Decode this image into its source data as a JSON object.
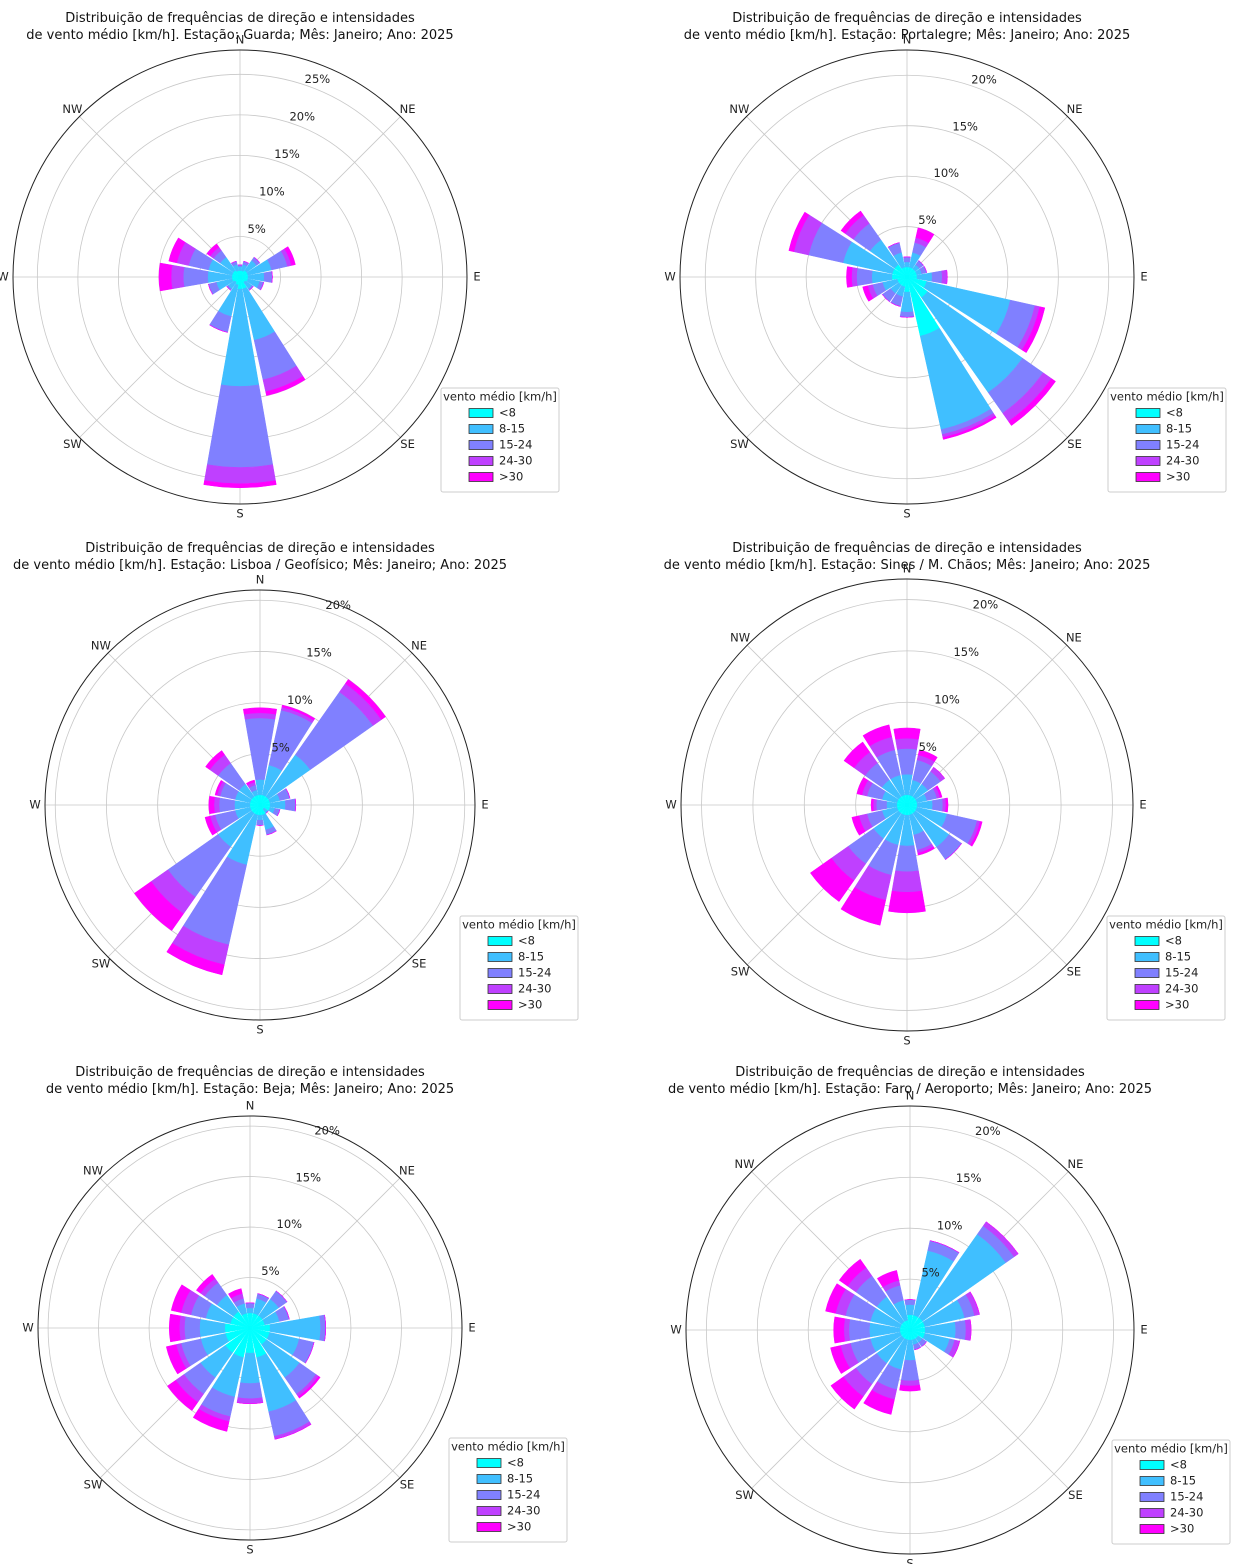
{
  "chart_data": [
    {
      "type": "windrose",
      "title": "Distribuição de frequências de direção e intensidades\nde vento médio [km/h]. Estação: Guarda; Mês: Janeiro; Ano: 2025",
      "categories": [
        "N",
        null,
        "NE",
        null,
        "E",
        null,
        "SE",
        null,
        "S",
        null,
        "SW",
        null,
        "W",
        null,
        "NW",
        null
      ],
      "ylim": [
        0,
        28
      ],
      "yticks": [
        {
          "value": 5,
          "label": "5%"
        },
        {
          "value": 10,
          "label": "10%"
        },
        {
          "value": 15,
          "label": "15%"
        },
        {
          "value": 20,
          "label": "20%"
        },
        {
          "value": 25,
          "label": "25%"
        }
      ],
      "legend_title": "vento médio [km/h]",
      "series": [
        {
          "name": "<8",
          "color": "#00ffff",
          "values": [
            0.8,
            0.8,
            1,
            1,
            1,
            1,
            0.8,
            1.5,
            1.5,
            1,
            0.8,
            1,
            1,
            1,
            1,
            0.8
          ]
        },
        {
          "name": "8-15",
          "color": "#40bfff",
          "values": [
            0.5,
            0.8,
            1.5,
            3,
            2,
            1.5,
            1,
            6.5,
            12,
            4,
            1,
            2,
            3,
            3,
            2,
            0.8
          ]
        },
        {
          "name": "15-24",
          "color": "#8080ff",
          "values": [
            0.2,
            0.4,
            0.5,
            2,
            1,
            0.5,
            0.2,
            5,
            10,
            2,
            0.2,
            1,
            3,
            2.5,
            1,
            0.4
          ]
        },
        {
          "name": "24-30",
          "color": "#bf40ff",
          "values": [
            0,
            0,
            0,
            0.5,
            0,
            0,
            0,
            1.5,
            2,
            0,
            0,
            0,
            1.5,
            1.5,
            0.5,
            0
          ]
        },
        {
          "name": ">30",
          "color": "#ff00ff",
          "values": [
            0,
            0,
            0,
            0.5,
            0,
            0,
            0,
            0.5,
            0.5,
            0,
            0,
            0,
            1.5,
            1,
            0.5,
            0
          ]
        }
      ]
    },
    {
      "type": "windrose",
      "title": "Distribuição de frequências de direção e intensidades\nde vento médio [km/h]. Estação: Portalegre; Mês: Janeiro; Ano: 2025",
      "categories": [
        "N",
        null,
        "NE",
        null,
        "E",
        null,
        "SE",
        null,
        "S",
        null,
        "SW",
        null,
        "W",
        null,
        "NW",
        null
      ],
      "ylim": [
        0,
        22.5
      ],
      "yticks": [
        {
          "value": 5,
          "label": "5%"
        },
        {
          "value": 10,
          "label": "10%"
        },
        {
          "value": 15,
          "label": "15%"
        },
        {
          "value": 20,
          "label": "20%"
        }
      ],
      "legend_title": "vento médio [km/h]",
      "series": [
        {
          "name": "<8",
          "color": "#00ffff",
          "values": [
            1,
            1,
            1,
            1,
            1,
            2,
            2.5,
            6,
            1.5,
            1,
            1,
            1,
            1.5,
            1.5,
            1.5,
            1
          ]
        },
        {
          "name": "8-15",
          "color": "#40bfff",
          "values": [
            0.5,
            1.5,
            0.5,
            0.5,
            1.5,
            8.5,
            11.5,
            9.5,
            2,
            1,
            1,
            1.5,
            2,
            5,
            3,
            1.5
          ]
        },
        {
          "name": "15-24",
          "color": "#8080ff",
          "values": [
            0.5,
            1,
            0.5,
            0.5,
            1,
            2.5,
            2.5,
            0.5,
            0.5,
            1,
            1,
            1,
            1.5,
            3.5,
            2,
            1
          ]
        },
        {
          "name": "24-30",
          "color": "#bf40ff",
          "values": [
            0,
            0.5,
            0,
            0,
            0.5,
            0.5,
            1,
            0.3,
            0,
            0,
            0,
            0.5,
            0.5,
            1.5,
            1,
            0
          ]
        },
        {
          "name": ">30",
          "color": "#ff00ff",
          "values": [
            0,
            1,
            0,
            0,
            0,
            0.5,
            0.5,
            0.2,
            0,
            0,
            0,
            0.5,
            0.5,
            0.5,
            0.5,
            0
          ]
        }
      ]
    },
    {
      "type": "windrose",
      "title": "Distribuição de frequências de direção e intensidades\nde vento médio [km/h]. Estação: Lisboa / Geofísico; Mês: Janeiro; Ano: 2025",
      "categories": [
        "N",
        null,
        "NE",
        null,
        "E",
        null,
        "SE",
        null,
        "S",
        null,
        "SW",
        null,
        "W",
        null,
        "NW",
        null
      ],
      "ylim": [
        0,
        21
      ],
      "yticks": [
        {
          "value": 5,
          "label": "5%"
        },
        {
          "value": 10,
          "label": "10%"
        },
        {
          "value": 15,
          "label": "15%"
        },
        {
          "value": 20,
          "label": "20%"
        }
      ],
      "legend_title": "vento médio [km/h]",
      "series": [
        {
          "name": "<8",
          "color": "#00ffff",
          "values": [
            1,
            1,
            1,
            1,
            1,
            1,
            0.5,
            1,
            1,
            1,
            1,
            1,
            1,
            1,
            1,
            1
          ]
        },
        {
          "name": "8-15",
          "color": "#40bfff",
          "values": [
            1.5,
            3,
            5,
            1,
            1.5,
            0.5,
            0.5,
            1.5,
            0.5,
            5,
            4,
            1.5,
            1.5,
            1.5,
            1.5,
            0.5
          ]
        },
        {
          "name": "15-24",
          "color": "#8080ff",
          "values": [
            6,
            5.5,
            7.5,
            1,
            1,
            0.5,
            0,
            0.5,
            0.5,
            8,
            6,
            2,
            1.5,
            1.5,
            2.5,
            0.5
          ]
        },
        {
          "name": "24-30",
          "color": "#bf40ff",
          "values": [
            0.5,
            0.3,
            1,
            0,
            0,
            0,
            0,
            0,
            0,
            2,
            2,
            0.5,
            0.5,
            0.3,
            1,
            0.3
          ]
        },
        {
          "name": ">30",
          "color": "#ff00ff",
          "values": [
            0.5,
            0.2,
            0.5,
            0,
            0,
            0,
            0,
            0,
            0,
            1,
            2,
            0.5,
            0.5,
            0.2,
            0.5,
            0.2
          ]
        }
      ]
    },
    {
      "type": "windrose",
      "title": "Distribuição de frequências de direção e intensidades\nde vento médio [km/h]. Estação: Sines / M. Chãos; Mês: Janeiro; Ano: 2025",
      "categories": [
        "N",
        null,
        "NE",
        null,
        "E",
        null,
        "SE",
        null,
        "S",
        null,
        "SW",
        null,
        "W",
        null,
        "NW",
        null
      ],
      "ylim": [
        0,
        22
      ],
      "yticks": [
        {
          "value": 5,
          "label": "5%"
        },
        {
          "value": 10,
          "label": "10%"
        },
        {
          "value": 15,
          "label": "15%"
        },
        {
          "value": 20,
          "label": "20%"
        }
      ],
      "legend_title": "vento médio [km/h]",
      "series": [
        {
          "name": "<8",
          "color": "#00ffff",
          "values": [
            1,
            1,
            1,
            1,
            1,
            1,
            1,
            1,
            1,
            1,
            1,
            1,
            1,
            1,
            1,
            1
          ]
        },
        {
          "name": "8-15",
          "color": "#40bfff",
          "values": [
            2,
            1.5,
            1.5,
            1,
            1.5,
            3,
            4,
            2,
            3,
            3,
            3,
            1.5,
            1,
            1.5,
            2,
            2
          ]
        },
        {
          "name": "15-24",
          "color": "#8080ff",
          "values": [
            2.5,
            2,
            1.5,
            1,
            1,
            3,
            1.5,
            1.5,
            2.5,
            3,
            3,
            1.5,
            1,
            1.5,
            2,
            2.5
          ]
        },
        {
          "name": "24-30",
          "color": "#bf40ff",
          "values": [
            1,
            0.5,
            0.5,
            0.3,
            0.3,
            0.3,
            0,
            0.3,
            2,
            2.5,
            2,
            0.8,
            0.3,
            0.5,
            1.3,
            1.3
          ]
        },
        {
          "name": ">30",
          "color": "#ff00ff",
          "values": [
            1,
            0.5,
            0,
            0.2,
            0.2,
            0.2,
            0,
            0.2,
            2,
            2.5,
            2.5,
            0.7,
            0.2,
            0.5,
            1.2,
            1.2
          ]
        }
      ]
    },
    {
      "type": "windrose",
      "title": "Distribuição de frequências de direção e intensidades\nde vento médio [km/h]. Estação: Beja; Mês: Janeiro; Ano: 2025",
      "categories": [
        "N",
        null,
        "NE",
        null,
        "E",
        null,
        "SE",
        null,
        "S",
        null,
        "SW",
        null,
        "W",
        null,
        "NW",
        null
      ],
      "ylim": [
        0,
        21
      ],
      "yticks": [
        {
          "value": 5,
          "label": "5%"
        },
        {
          "value": 10,
          "label": "10%"
        },
        {
          "value": 15,
          "label": "15%"
        },
        {
          "value": 20,
          "label": "20%"
        }
      ],
      "legend_title": "vento médio [km/h]",
      "series": [
        {
          "name": "<8",
          "color": "#00ffff",
          "values": [
            1.5,
            1.5,
            1.5,
            1.5,
            2,
            2,
            2,
            3,
            2.5,
            3,
            3,
            2.5,
            2.5,
            2,
            2,
            1.5
          ]
        },
        {
          "name": "8-15",
          "color": "#40bfff",
          "values": [
            0.5,
            1.5,
            2,
            1.5,
            5,
            3,
            4,
            5.5,
            3,
            4,
            3,
            2.5,
            2.5,
            2.5,
            2,
            1
          ]
        },
        {
          "name": "15-24",
          "color": "#8080ff",
          "values": [
            0.5,
            0.5,
            1,
            1,
            0.5,
            1.5,
            2,
            2.5,
            1.5,
            2,
            2,
            2,
            1.5,
            1.5,
            1.5,
            0.5
          ]
        },
        {
          "name": "24-30",
          "color": "#bf40ff",
          "values": [
            0,
            0,
            0,
            0,
            0,
            0,
            0.3,
            0.3,
            0.5,
            0.5,
            1,
            0.5,
            0.5,
            1,
            0.5,
            0.5
          ]
        },
        {
          "name": ">30",
          "color": "#ff00ff",
          "values": [
            0,
            0,
            0,
            0,
            0,
            0,
            0.2,
            0,
            0,
            1,
            1,
            1,
            1,
            1,
            0.5,
            0.5
          ]
        }
      ]
    },
    {
      "type": "windrose",
      "title": "Distribuição de frequências de direção e intensidades\nde vento médio [km/h]. Estação: Faro / Aeroporto; Mês: Janeiro; Ano: 2025",
      "categories": [
        "N",
        null,
        "NE",
        null,
        "E",
        null,
        "SE",
        null,
        "S",
        null,
        "SW",
        null,
        "W",
        null,
        "NW",
        null
      ],
      "ylim": [
        0,
        22
      ],
      "yticks": [
        {
          "value": 5,
          "label": "5%"
        },
        {
          "value": 10,
          "label": "10%"
        },
        {
          "value": 15,
          "label": "15%"
        },
        {
          "value": 20,
          "label": "20%"
        }
      ],
      "legend_title": "vento médio [km/h]",
      "series": [
        {
          "name": "<8",
          "color": "#00ffff",
          "values": [
            1.5,
            1.5,
            1.5,
            1.5,
            1.5,
            1.5,
            1,
            1,
            1,
            1,
            1,
            1,
            1,
            1,
            1,
            1
          ]
        },
        {
          "name": "8-15",
          "color": "#40bfff",
          "values": [
            1,
            6.5,
            10,
            4,
            3,
            2.5,
            0.5,
            0.5,
            2,
            3,
            3,
            3,
            3,
            3,
            3,
            2
          ]
        },
        {
          "name": "15-24",
          "color": "#8080ff",
          "values": [
            0.5,
            1,
            1,
            1,
            1,
            0.5,
            0.5,
            0.5,
            2,
            2,
            2.5,
            2,
            2,
            2.5,
            2.5,
            1.5
          ]
        },
        {
          "name": "24-30",
          "color": "#bf40ff",
          "values": [
            0,
            0,
            0.5,
            0.5,
            0.5,
            0.5,
            0,
            0,
            0.5,
            1,
            1.5,
            1,
            0.5,
            1,
            1,
            0.5
          ]
        },
        {
          "name": ">30",
          "color": "#ff00ff",
          "values": [
            0,
            0,
            0,
            0,
            0,
            0,
            0,
            0,
            0.5,
            1.5,
            1.5,
            1,
            1,
            1,
            1,
            1
          ]
        }
      ]
    }
  ]
}
